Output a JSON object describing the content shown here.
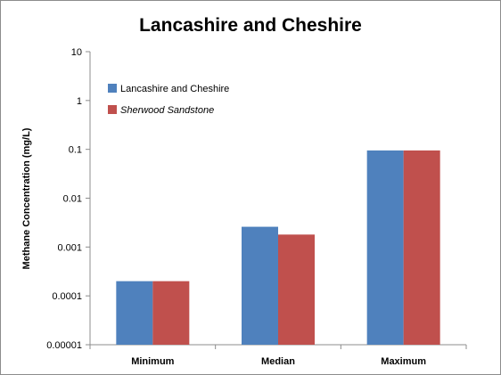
{
  "chart_data": {
    "type": "bar",
    "title": "Lancashire and Cheshire",
    "ylabel": "Methane Concentration (mg/L)",
    "xlabel": "",
    "yscale": "log",
    "ylim": [
      1e-05,
      10
    ],
    "yticks": [
      "10",
      "1",
      "0.1",
      "0.01",
      "0.001",
      "0.0001",
      "0.00001"
    ],
    "categories": [
      "Minimum",
      "Median",
      "Maximum"
    ],
    "series": [
      {
        "name": "Lancashire and Cheshire",
        "color": "#4f81bd",
        "italic": false,
        "values": [
          0.0002,
          0.0026,
          0.095
        ]
      },
      {
        "name": "Sherwood Sandstone",
        "color": "#c0504d",
        "italic": true,
        "values": [
          0.0002,
          0.0018,
          0.095
        ]
      }
    ],
    "grid": false,
    "legend_position": "top-left inside plot"
  }
}
